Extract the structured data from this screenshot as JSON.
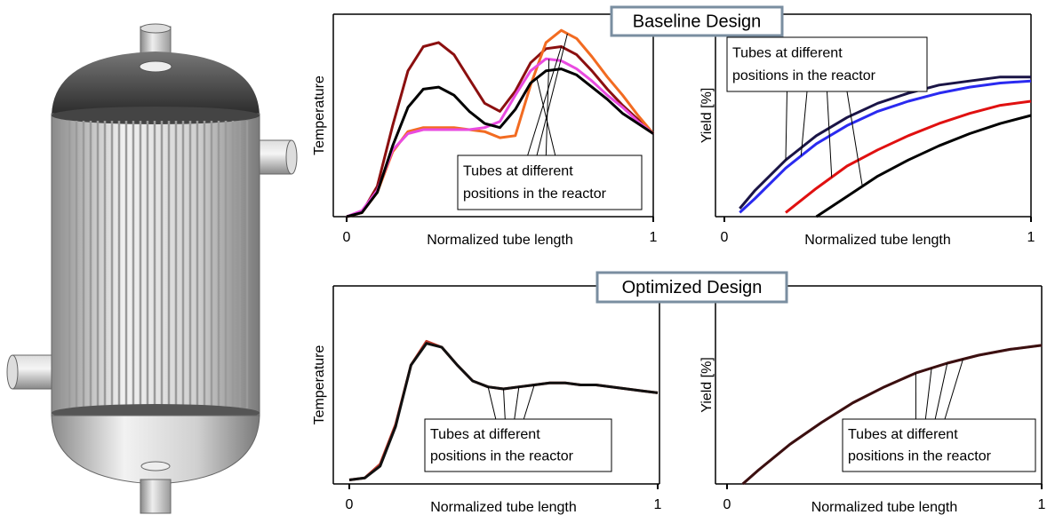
{
  "section_titles": [
    "Baseline Design",
    "Optimized Design"
  ],
  "chart_data": [
    {
      "type": "line",
      "ylabel": "Temperature",
      "xlabel": "Normalized tube length",
      "annotation": [
        "Tubes at different",
        "positions in the reactor"
      ],
      "xlim": [
        0,
        1
      ],
      "xticks": [
        0,
        1
      ],
      "ylim": [
        0,
        1
      ],
      "x": [
        0,
        0.05,
        0.1,
        0.15,
        0.2,
        0.25,
        0.3,
        0.35,
        0.4,
        0.45,
        0.5,
        0.55,
        0.6,
        0.65,
        0.7,
        0.75,
        0.8,
        0.85,
        0.9,
        0.95,
        1
      ],
      "series": [
        {
          "color": "#8b0f0f",
          "values": [
            0,
            0.02,
            0.15,
            0.45,
            0.72,
            0.84,
            0.86,
            0.8,
            0.68,
            0.56,
            0.52,
            0.62,
            0.76,
            0.83,
            0.84,
            0.8,
            0.72,
            0.63,
            0.55,
            0.48,
            0.41
          ]
        },
        {
          "color": "#f26b21",
          "values": [
            0,
            0.02,
            0.12,
            0.32,
            0.42,
            0.44,
            0.44,
            0.44,
            0.43,
            0.42,
            0.39,
            0.4,
            0.65,
            0.86,
            0.92,
            0.88,
            0.79,
            0.69,
            0.6,
            0.5,
            0.41
          ]
        },
        {
          "color": "#e94be0",
          "values": [
            0,
            0.03,
            0.13,
            0.33,
            0.41,
            0.43,
            0.43,
            0.43,
            0.43,
            0.44,
            0.47,
            0.6,
            0.72,
            0.78,
            0.77,
            0.73,
            0.67,
            0.6,
            0.54,
            0.47,
            0.41
          ]
        },
        {
          "color": "#000000",
          "values": [
            0,
            0.02,
            0.12,
            0.35,
            0.54,
            0.63,
            0.64,
            0.6,
            0.52,
            0.46,
            0.44,
            0.53,
            0.66,
            0.72,
            0.73,
            0.7,
            0.64,
            0.58,
            0.51,
            0.46,
            0.41
          ]
        }
      ]
    },
    {
      "type": "line",
      "ylabel": "Yield [%]",
      "xlabel": "Normalized tube length",
      "annotation": [
        "Tubes at different",
        "positions in the reactor"
      ],
      "xlim": [
        0,
        1
      ],
      "xticks": [
        0,
        1
      ],
      "ylim": [
        0,
        1
      ],
      "x": [
        0,
        0.05,
        0.1,
        0.2,
        0.3,
        0.4,
        0.5,
        0.6,
        0.7,
        0.8,
        0.9,
        1
      ],
      "series": [
        {
          "color": "#1a1446",
          "values": [
            null,
            0.04,
            0.13,
            0.28,
            0.4,
            0.49,
            0.56,
            0.61,
            0.65,
            0.67,
            0.69,
            0.69
          ]
        },
        {
          "color": "#2a2af0",
          "values": [
            null,
            0.02,
            0.09,
            0.24,
            0.36,
            0.45,
            0.52,
            0.57,
            0.61,
            0.64,
            0.66,
            0.67
          ]
        },
        {
          "color": "#e01010",
          "values": [
            null,
            null,
            null,
            0.02,
            0.14,
            0.25,
            0.33,
            0.4,
            0.46,
            0.51,
            0.55,
            0.57
          ]
        },
        {
          "color": "#000000",
          "values": [
            null,
            null,
            null,
            null,
            0,
            0.1,
            0.2,
            0.28,
            0.35,
            0.41,
            0.46,
            0.5
          ]
        }
      ]
    },
    {
      "type": "line",
      "ylabel": "Temperature",
      "xlabel": "Normalized tube length",
      "annotation": [
        "Tubes at different",
        "positions in the reactor"
      ],
      "xlim": [
        0,
        1
      ],
      "xticks": [
        0,
        1
      ],
      "ylim": [
        0,
        1
      ],
      "x": [
        0,
        0.05,
        0.1,
        0.15,
        0.2,
        0.25,
        0.3,
        0.35,
        0.4,
        0.45,
        0.5,
        0.55,
        0.6,
        0.65,
        0.7,
        0.75,
        0.8,
        0.85,
        0.9,
        0.95,
        1
      ],
      "series": [
        {
          "color": "#c0392b",
          "values": [
            0.02,
            0.03,
            0.1,
            0.3,
            0.6,
            0.72,
            0.69,
            0.6,
            0.52,
            0.49,
            0.48,
            0.49,
            0.5,
            0.51,
            0.51,
            0.5,
            0.5,
            0.49,
            0.48,
            0.47,
            0.46
          ]
        },
        {
          "color": "#111111",
          "values": [
            0.02,
            0.03,
            0.09,
            0.29,
            0.6,
            0.71,
            0.69,
            0.6,
            0.52,
            0.49,
            0.48,
            0.49,
            0.5,
            0.51,
            0.51,
            0.5,
            0.5,
            0.49,
            0.48,
            0.47,
            0.46
          ]
        }
      ]
    },
    {
      "type": "line",
      "ylabel": "Yield [%]",
      "xlabel": "Normalized tube length",
      "annotation": [
        "Tubes at different",
        "positions in the reactor"
      ],
      "xlim": [
        0,
        1
      ],
      "xticks": [
        0,
        1
      ],
      "ylim": [
        0,
        1
      ],
      "x": [
        0,
        0.05,
        0.1,
        0.2,
        0.3,
        0.4,
        0.5,
        0.6,
        0.7,
        0.8,
        0.9,
        1
      ],
      "series": [
        {
          "color": "#e08aa0",
          "values": [
            null,
            0,
            0.07,
            0.2,
            0.31,
            0.41,
            0.49,
            0.56,
            0.61,
            0.65,
            0.68,
            0.7
          ]
        },
        {
          "color": "#3a1010",
          "values": [
            null,
            0,
            0.07,
            0.2,
            0.31,
            0.41,
            0.49,
            0.56,
            0.61,
            0.65,
            0.68,
            0.7
          ]
        }
      ]
    }
  ]
}
